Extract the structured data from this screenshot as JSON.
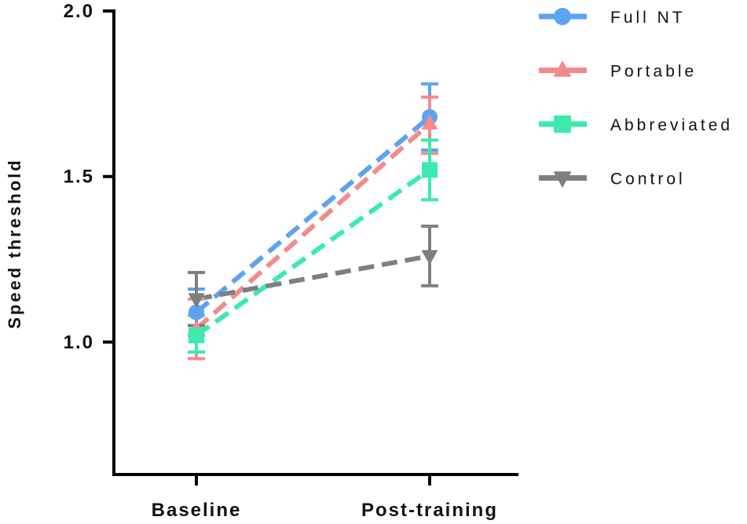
{
  "chart_data": {
    "type": "line",
    "categories": [
      "Baseline",
      "Post-training"
    ],
    "ylabel": "Speed threshold",
    "xlabel": "",
    "ylim": [
      0.6,
      2.0
    ],
    "yticks": [
      "1.0",
      "1.5",
      "2.0"
    ],
    "legend_position": "top-right",
    "series": [
      {
        "name": "Full NT",
        "color": "#5ca3f2",
        "marker": "circle",
        "values": [
          1.09,
          1.68
        ],
        "err_low": [
          1.02,
          1.58
        ],
        "err_high": [
          1.16,
          1.78
        ]
      },
      {
        "name": "Portable",
        "color": "#f28b8b",
        "marker": "triangle-up",
        "values": [
          1.04,
          1.66
        ],
        "err_low": [
          0.95,
          1.57
        ],
        "err_high": [
          1.13,
          1.74
        ]
      },
      {
        "name": "Abbreviated",
        "color": "#3eeaab",
        "marker": "square",
        "values": [
          1.02,
          1.52
        ],
        "err_low": [
          0.97,
          1.43
        ],
        "err_high": [
          1.08,
          1.61
        ]
      },
      {
        "name": "Control",
        "color": "#7f7f7f",
        "marker": "triangle-down",
        "values": [
          1.13,
          1.26
        ],
        "err_low": [
          1.05,
          1.17
        ],
        "err_high": [
          1.21,
          1.35
        ]
      }
    ]
  }
}
